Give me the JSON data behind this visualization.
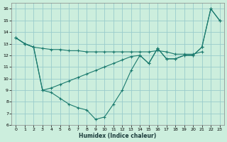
{
  "xlabel": "Humidex (Indice chaleur)",
  "bg_color": "#cceedd",
  "line_color": "#1a7a6e",
  "grid_color": "#99cccc",
  "xlim": [
    -0.5,
    23.5
  ],
  "ylim": [
    6,
    16.5
  ],
  "xticks": [
    0,
    1,
    2,
    3,
    4,
    5,
    6,
    7,
    8,
    9,
    10,
    11,
    12,
    13,
    14,
    15,
    16,
    17,
    18,
    19,
    20,
    21,
    22,
    23
  ],
  "yticks": [
    6,
    7,
    8,
    9,
    10,
    11,
    12,
    13,
    14,
    15,
    16
  ],
  "series": [
    {
      "x": [
        0,
        1,
        2,
        3,
        4,
        5,
        6,
        7,
        8,
        9,
        10,
        11,
        12,
        13,
        14,
        15,
        16,
        17,
        18,
        19,
        20,
        21
      ],
      "y": [
        13.5,
        13.0,
        12.7,
        12.6,
        12.5,
        12.5,
        12.4,
        12.4,
        12.3,
        12.3,
        12.3,
        12.3,
        12.3,
        12.3,
        12.3,
        12.3,
        12.4,
        12.3,
        12.1,
        12.1,
        12.1,
        12.3
      ]
    },
    {
      "x": [
        0,
        1,
        2,
        3,
        4,
        5,
        6,
        7,
        8,
        9,
        10,
        11,
        12,
        13,
        14,
        15,
        16,
        17,
        18,
        19,
        20,
        21,
        22,
        23
      ],
      "y": [
        13.5,
        13.0,
        12.7,
        9.0,
        8.8,
        8.3,
        7.8,
        7.5,
        7.3,
        6.5,
        6.7,
        7.8,
        9.0,
        10.7,
        12.0,
        11.3,
        12.6,
        11.7,
        11.7,
        12.0,
        12.0,
        12.7,
        16.0,
        15.0
      ]
    },
    {
      "x": [
        0,
        1,
        2,
        3,
        4,
        5,
        6,
        7,
        8,
        9,
        10,
        11,
        12,
        13,
        14,
        15,
        16,
        17,
        18,
        19,
        20,
        21,
        22,
        23
      ],
      "y": [
        13.5,
        13.0,
        12.7,
        9.0,
        9.2,
        9.5,
        9.8,
        10.1,
        10.4,
        10.7,
        11.0,
        11.3,
        11.6,
        11.9,
        12.0,
        11.3,
        12.6,
        11.7,
        11.7,
        12.0,
        12.0,
        12.7,
        16.0,
        15.0
      ]
    }
  ]
}
